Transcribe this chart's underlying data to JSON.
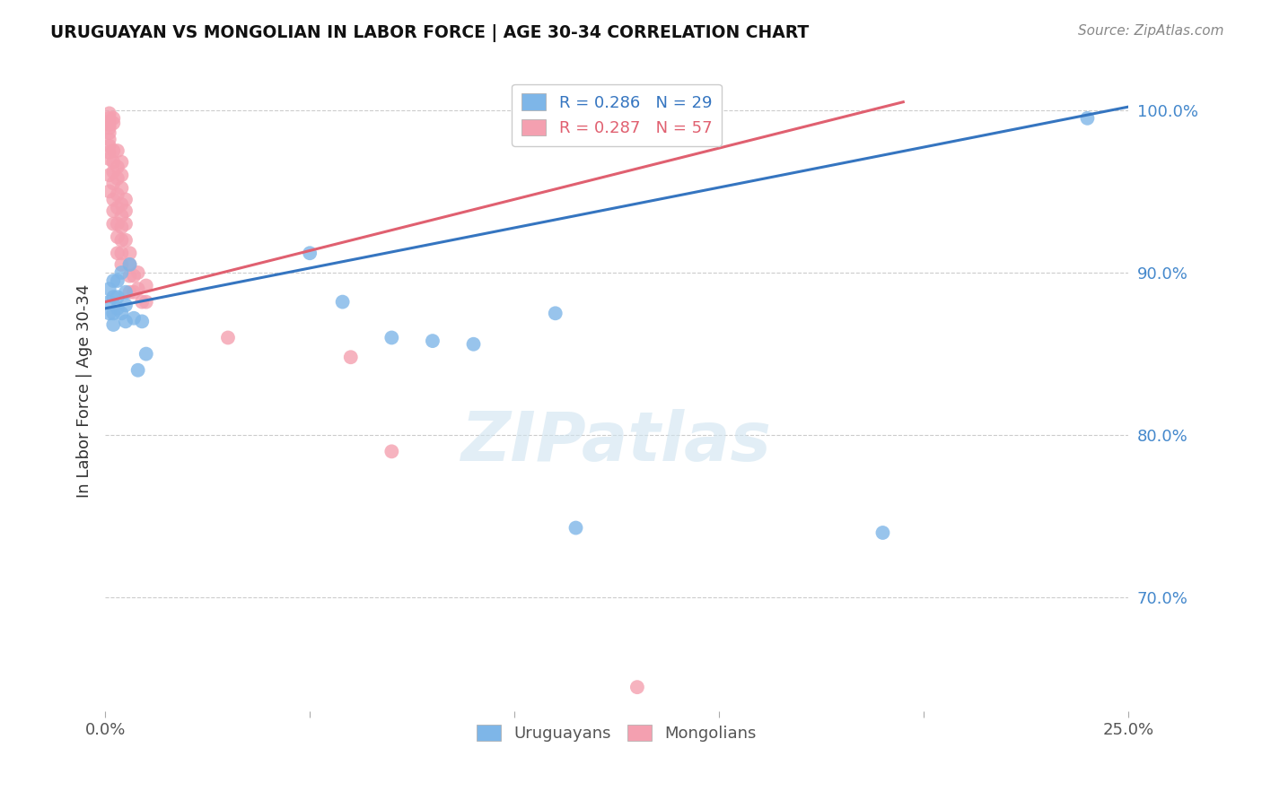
{
  "title": "URUGUAYAN VS MONGOLIAN IN LABOR FORCE | AGE 30-34 CORRELATION CHART",
  "source": "Source: ZipAtlas.com",
  "ylabel": "In Labor Force | Age 30-34",
  "xlim": [
    0.0,
    0.25
  ],
  "ylim": [
    0.63,
    1.025
  ],
  "xticks": [
    0.0,
    0.05,
    0.1,
    0.15,
    0.2,
    0.25
  ],
  "xticklabels": [
    "0.0%",
    "",
    "",
    "",
    "",
    "25.0%"
  ],
  "ytick_positions": [
    0.7,
    0.8,
    0.9,
    1.0
  ],
  "ytick_labels": [
    "70.0%",
    "80.0%",
    "90.0%",
    "100.0%"
  ],
  "blue_R": 0.286,
  "blue_N": 29,
  "pink_R": 0.287,
  "pink_N": 57,
  "blue_color": "#7EB6E8",
  "pink_color": "#F4A0B0",
  "blue_line_color": "#3575C0",
  "pink_line_color": "#E06070",
  "blue_scatter_x": [
    0.001,
    0.001,
    0.001,
    0.002,
    0.002,
    0.002,
    0.002,
    0.003,
    0.003,
    0.003,
    0.004,
    0.004,
    0.005,
    0.005,
    0.005,
    0.006,
    0.007,
    0.008,
    0.009,
    0.01,
    0.05,
    0.058,
    0.07,
    0.08,
    0.09,
    0.11,
    0.115,
    0.19,
    0.24
  ],
  "blue_scatter_y": [
    0.89,
    0.882,
    0.875,
    0.895,
    0.885,
    0.875,
    0.868,
    0.895,
    0.885,
    0.878,
    0.9,
    0.875,
    0.888,
    0.88,
    0.87,
    0.905,
    0.872,
    0.84,
    0.87,
    0.85,
    0.912,
    0.882,
    0.86,
    0.858,
    0.856,
    0.875,
    0.743,
    0.74,
    0.995
  ],
  "pink_scatter_x": [
    0.001,
    0.001,
    0.001,
    0.001,
    0.001,
    0.001,
    0.001,
    0.001,
    0.001,
    0.001,
    0.001,
    0.001,
    0.002,
    0.002,
    0.002,
    0.002,
    0.002,
    0.002,
    0.002,
    0.002,
    0.002,
    0.003,
    0.003,
    0.003,
    0.003,
    0.003,
    0.003,
    0.003,
    0.003,
    0.004,
    0.004,
    0.004,
    0.004,
    0.004,
    0.004,
    0.004,
    0.004,
    0.004,
    0.005,
    0.005,
    0.005,
    0.005,
    0.006,
    0.006,
    0.006,
    0.006,
    0.007,
    0.007,
    0.008,
    0.008,
    0.009,
    0.01,
    0.01,
    0.03,
    0.06,
    0.07,
    0.13
  ],
  "pink_scatter_y": [
    0.998,
    0.995,
    0.993,
    0.991,
    0.989,
    0.986,
    0.982,
    0.978,
    0.974,
    0.97,
    0.96,
    0.95,
    0.995,
    0.992,
    0.975,
    0.968,
    0.962,
    0.955,
    0.945,
    0.938,
    0.93,
    0.975,
    0.965,
    0.958,
    0.948,
    0.94,
    0.93,
    0.922,
    0.912,
    0.968,
    0.96,
    0.952,
    0.942,
    0.935,
    0.928,
    0.92,
    0.912,
    0.905,
    0.945,
    0.938,
    0.93,
    0.92,
    0.912,
    0.905,
    0.898,
    0.888,
    0.898,
    0.888,
    0.9,
    0.89,
    0.882,
    0.892,
    0.882,
    0.86,
    0.848,
    0.79,
    0.645
  ],
  "blue_trend_x": [
    0.0,
    0.25
  ],
  "blue_trend_y": [
    0.878,
    1.002
  ],
  "pink_trend_x": [
    0.0,
    0.195
  ],
  "pink_trend_y": [
    0.882,
    1.005
  ],
  "grid_color": "#cccccc",
  "background_color": "#ffffff"
}
